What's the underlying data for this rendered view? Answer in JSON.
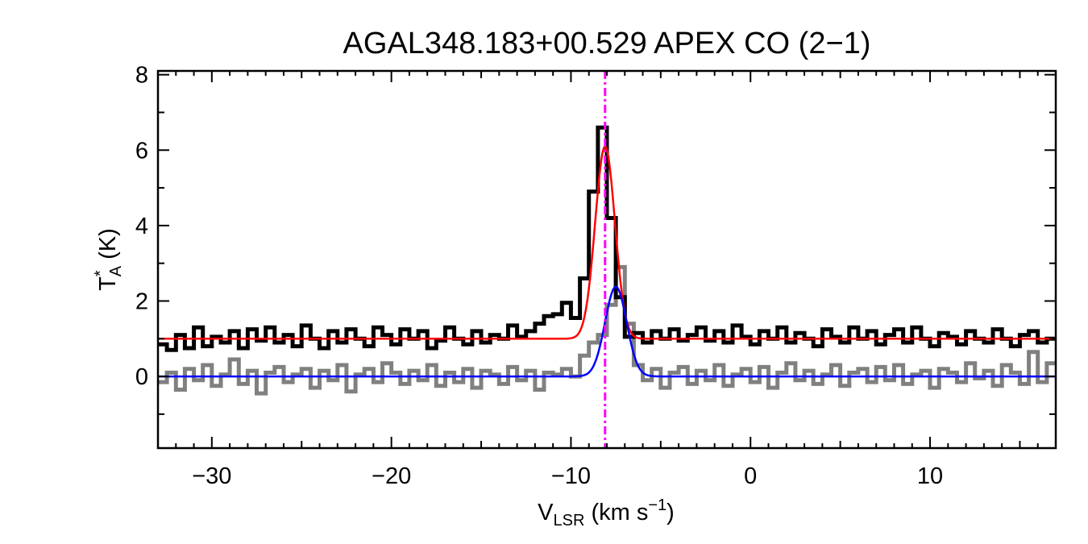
{
  "chart_data": {
    "type": "line",
    "title": "AGAL348.183+00.529  APEX CO (2−1)",
    "xlabel": {
      "main": "V",
      "sub": "LSR",
      "rest": " (km s",
      "sup": "−1",
      "close": ")"
    },
    "ylabel": {
      "main": "T",
      "sup": "*",
      "sub": "A",
      "rest": " (K)"
    },
    "xlim": [
      -33,
      17
    ],
    "ylim": [
      -1.9,
      8.1
    ],
    "x_ticks": [
      {
        "value": -30,
        "label": "−30"
      },
      {
        "value": -20,
        "label": "−20"
      },
      {
        "value": -10,
        "label": "−10"
      },
      {
        "value": 0,
        "label": "0"
      },
      {
        "value": 10,
        "label": "10"
      }
    ],
    "y_ticks": [
      {
        "value": 0,
        "label": "0"
      },
      {
        "value": 2,
        "label": "2"
      },
      {
        "value": 4,
        "label": "4"
      },
      {
        "value": 6,
        "label": "6"
      },
      {
        "value": 8,
        "label": "8"
      }
    ],
    "grid": false,
    "vline": {
      "x": -8.1,
      "color": "#ff00ff",
      "style": "dash-dot"
    },
    "series": [
      {
        "kind": "spectrum",
        "color": "#000000",
        "offset": 1.0,
        "x": [
          -33.0,
          -32.5,
          -32.0,
          -31.5,
          -31.0,
          -30.5,
          -30.0,
          -29.5,
          -29.0,
          -28.5,
          -28.0,
          -27.5,
          -27.0,
          -26.5,
          -26.0,
          -25.5,
          -25.0,
          -24.5,
          -24.0,
          -23.5,
          -23.0,
          -22.5,
          -22.0,
          -21.5,
          -21.0,
          -20.5,
          -20.0,
          -19.5,
          -19.0,
          -18.5,
          -18.0,
          -17.5,
          -17.0,
          -16.5,
          -16.0,
          -15.5,
          -15.0,
          -14.5,
          -14.0,
          -13.5,
          -13.0,
          -12.5,
          -12.0,
          -11.5,
          -11.0,
          -10.5,
          -10.0,
          -9.5,
          -9.0,
          -8.5,
          -8.0,
          -7.5,
          -7.0,
          -6.5,
          -6.0,
          -5.5,
          -5.0,
          -4.5,
          -4.0,
          -3.5,
          -3.0,
          -2.5,
          -2.0,
          -1.5,
          -1.0,
          -0.5,
          0.0,
          0.5,
          1.0,
          1.5,
          2.0,
          2.5,
          3.0,
          3.5,
          4.0,
          4.5,
          5.0,
          5.5,
          6.0,
          6.5,
          7.0,
          7.5,
          8.0,
          8.5,
          9.0,
          9.5,
          10.0,
          10.5,
          11.0,
          11.5,
          12.0,
          12.5,
          13.0,
          13.5,
          14.0,
          14.5,
          15.0,
          15.5,
          16.0,
          16.5
        ],
        "y": [
          0.85,
          0.7,
          1.1,
          0.75,
          1.3,
          0.8,
          1.05,
          0.9,
          1.2,
          0.75,
          1.25,
          0.95,
          1.3,
          0.9,
          1.1,
          0.8,
          1.35,
          1.0,
          0.75,
          1.2,
          0.9,
          1.25,
          1.0,
          0.8,
          1.3,
          1.1,
          0.85,
          1.25,
          1.0,
          1.2,
          0.75,
          0.95,
          1.3,
          1.0,
          0.85,
          1.2,
          0.9,
          1.1,
          1.0,
          1.35,
          1.05,
          1.2,
          1.4,
          1.6,
          1.65,
          1.95,
          1.55,
          2.6,
          4.9,
          6.6,
          4.2,
          2.1,
          1.05,
          1.15,
          0.9,
          1.2,
          1.0,
          1.25,
          0.95,
          1.1,
          1.3,
          0.95,
          1.2,
          0.9,
          1.35,
          1.05,
          0.85,
          1.2,
          1.0,
          1.3,
          0.9,
          1.15,
          1.0,
          0.8,
          1.25,
          1.05,
          0.9,
          1.3,
          1.0,
          1.2,
          0.85,
          1.1,
          1.25,
          0.9,
          1.3,
          1.0,
          0.8,
          1.15,
          1.05,
          0.85,
          1.2,
          1.0,
          0.9,
          1.25,
          1.0,
          0.8,
          1.1,
          1.2,
          0.9,
          1.0
        ]
      },
      {
        "kind": "spectrum",
        "color": "#808080",
        "offset": 0.0,
        "x": [
          -33.0,
          -32.5,
          -32.0,
          -31.5,
          -31.0,
          -30.5,
          -30.0,
          -29.5,
          -29.0,
          -28.5,
          -28.0,
          -27.5,
          -27.0,
          -26.5,
          -26.0,
          -25.5,
          -25.0,
          -24.5,
          -24.0,
          -23.5,
          -23.0,
          -22.5,
          -22.0,
          -21.5,
          -21.0,
          -20.5,
          -20.0,
          -19.5,
          -19.0,
          -18.5,
          -18.0,
          -17.5,
          -17.0,
          -16.5,
          -16.0,
          -15.5,
          -15.0,
          -14.5,
          -14.0,
          -13.5,
          -13.0,
          -12.5,
          -12.0,
          -11.5,
          -11.0,
          -10.5,
          -10.0,
          -9.5,
          -9.0,
          -8.5,
          -8.0,
          -7.5,
          -7.0,
          -6.5,
          -6.0,
          -5.5,
          -5.0,
          -4.5,
          -4.0,
          -3.5,
          -3.0,
          -2.5,
          -2.0,
          -1.5,
          -1.0,
          -0.5,
          0.0,
          0.5,
          1.0,
          1.5,
          2.0,
          2.5,
          3.0,
          3.5,
          4.0,
          4.5,
          5.0,
          5.5,
          6.0,
          6.5,
          7.0,
          7.5,
          8.0,
          8.5,
          9.0,
          9.5,
          10.0,
          10.5,
          11.0,
          11.5,
          12.0,
          12.5,
          13.0,
          13.5,
          14.0,
          14.5,
          15.0,
          15.5,
          16.0,
          16.5
        ],
        "y": [
          -0.15,
          0.1,
          -0.35,
          0.2,
          -0.1,
          0.3,
          -0.25,
          0.05,
          0.45,
          -0.2,
          0.15,
          -0.45,
          0.1,
          0.25,
          -0.15,
          0.05,
          0.2,
          -0.3,
          0.15,
          -0.1,
          0.3,
          -0.4,
          0.05,
          0.2,
          -0.15,
          0.35,
          0.1,
          -0.2,
          0.15,
          -0.1,
          0.3,
          -0.25,
          0.1,
          -0.15,
          0.2,
          -0.3,
          0.15,
          0.05,
          -0.2,
          0.25,
          -0.1,
          0.15,
          -0.35,
          0.1,
          0.05,
          0.2,
          0.0,
          0.55,
          0.9,
          1.1,
          1.9,
          2.9,
          1.4,
          0.3,
          -0.1,
          0.2,
          -0.3,
          0.1,
          0.25,
          -0.2,
          0.15,
          -0.1,
          0.3,
          -0.25,
          0.05,
          0.2,
          -0.15,
          0.25,
          -0.3,
          0.1,
          0.35,
          -0.1,
          0.15,
          -0.2,
          0.05,
          0.3,
          -0.25,
          0.1,
          0.2,
          -0.15,
          0.25,
          -0.1,
          0.3,
          -0.2,
          0.05,
          0.15,
          -0.3,
          0.2,
          0.1,
          -0.15,
          0.35,
          -0.05,
          0.15,
          -0.25,
          0.3,
          0.1,
          -0.2,
          0.65,
          -0.15,
          0.35
        ]
      },
      {
        "kind": "gaussian",
        "color": "#ff0000",
        "baseline": 1.0,
        "amplitude": 5.1,
        "center": -8.1,
        "sigma": 0.55
      },
      {
        "kind": "gaussian",
        "color": "#0000ff",
        "baseline": 0.0,
        "amplitude": 2.38,
        "center": -7.5,
        "sigma": 0.6
      }
    ]
  }
}
